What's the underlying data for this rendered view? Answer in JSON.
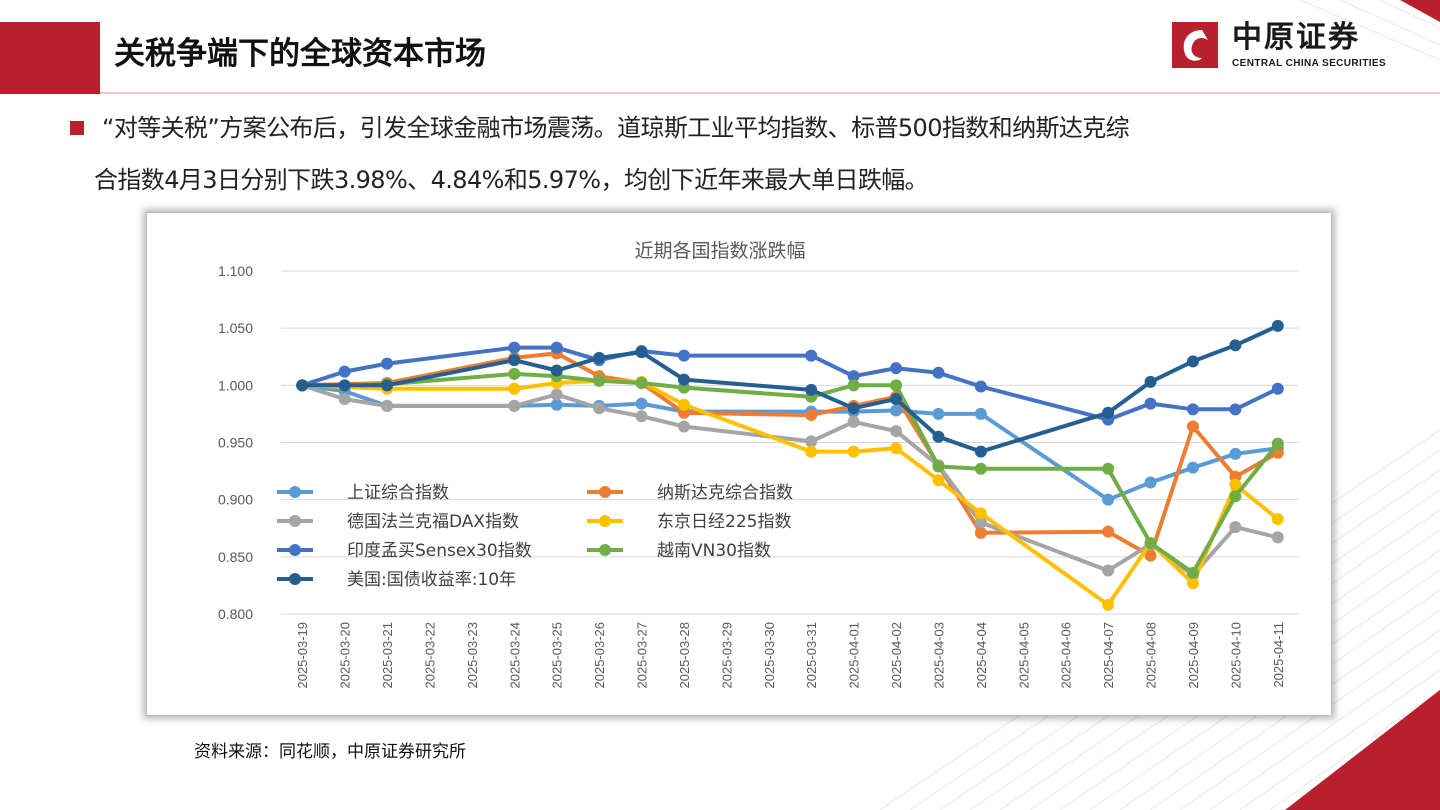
{
  "header": {
    "title": "关税争端下的全球资本市场",
    "logo_cn": "中原证券",
    "logo_en": "CENTRAL CHINA SECURITIES"
  },
  "intro": {
    "line1": "“对等关税”方案公布后，引发全球金融市场震荡。道琼斯工业平均指数、标普500指数和纳斯达克综",
    "line2": "合指数4月3日分别下跌3.98%、4.84%和5.97%，均创下近年来最大单日跌幅。"
  },
  "source": "资料来源：同花顺，中原证券研究所",
  "colors": {
    "brand_red": "#b8202e"
  },
  "chart_data": {
    "type": "line",
    "title": "近期各国指数涨跌幅",
    "ylim": [
      0.8,
      1.1
    ],
    "yticks": [
      1.1,
      1.05,
      1.0,
      0.95,
      0.9,
      0.85,
      0.8
    ],
    "ytick_labels": [
      "1.100",
      "1.050",
      "1.000",
      "0.950",
      "0.900",
      "0.850",
      "0.800"
    ],
    "grid": true,
    "legend_placement": "lower-left, inside plot",
    "categories": [
      "2025-03-19",
      "2025-03-20",
      "2025-03-21",
      "2025-03-22",
      "2025-03-23",
      "2025-03-24",
      "2025-03-25",
      "2025-03-26",
      "2025-03-27",
      "2025-03-28",
      "2025-03-29",
      "2025-03-30",
      "2025-03-31",
      "2025-04-01",
      "2025-04-02",
      "2025-04-03",
      "2025-04-04",
      "2025-04-05",
      "2025-04-06",
      "2025-04-07",
      "2025-04-08",
      "2025-04-09",
      "2025-04-10",
      "2025-04-11"
    ],
    "series": [
      {
        "name": "上证综合指数",
        "color": "#5b9bd5",
        "values": [
          1.0,
          0.995,
          0.982,
          null,
          null,
          0.982,
          0.983,
          0.982,
          0.984,
          0.977,
          null,
          null,
          0.977,
          0.977,
          0.978,
          0.975,
          0.975,
          null,
          null,
          0.9,
          0.915,
          0.928,
          0.94,
          0.945
        ]
      },
      {
        "name": "纳斯达克综合指数",
        "color": "#ed7d31",
        "values": [
          1.0,
          null,
          1.002,
          null,
          null,
          1.024,
          1.028,
          1.008,
          1.002,
          0.976,
          null,
          null,
          0.974,
          0.982,
          0.99,
          0.93,
          0.871,
          null,
          null,
          0.872,
          0.851,
          0.964,
          0.92,
          0.941
        ]
      },
      {
        "name": "德国法兰克福DAX指数",
        "color": "#a5a5a5",
        "values": [
          1.0,
          0.988,
          0.982,
          null,
          null,
          0.982,
          0.992,
          0.98,
          0.973,
          0.964,
          null,
          null,
          0.951,
          0.968,
          0.96,
          0.93,
          0.88,
          null,
          null,
          0.838,
          0.861,
          0.834,
          0.876,
          0.867
        ]
      },
      {
        "name": "东京日经225指数",
        "color": "#ffc000",
        "values": [
          1.0,
          null,
          0.997,
          null,
          null,
          0.997,
          1.002,
          1.004,
          1.003,
          0.983,
          null,
          null,
          0.942,
          0.942,
          0.945,
          0.917,
          0.888,
          null,
          null,
          0.808,
          0.862,
          0.827,
          0.913,
          0.883
        ]
      },
      {
        "name": "印度孟买Sensex30指数",
        "color": "#4472c4",
        "values": [
          1.0,
          1.012,
          1.019,
          null,
          null,
          1.033,
          1.033,
          1.022,
          1.03,
          1.026,
          null,
          null,
          1.026,
          1.008,
          1.015,
          1.011,
          0.999,
          null,
          null,
          0.97,
          0.984,
          0.979,
          0.979,
          0.997
        ]
      },
      {
        "name": "越南VN30指数",
        "color": "#70ad47",
        "values": [
          1.0,
          1.0,
          1.001,
          null,
          null,
          1.01,
          1.008,
          1.004,
          1.002,
          0.998,
          null,
          null,
          0.99,
          1.0,
          1.0,
          0.929,
          0.927,
          null,
          null,
          0.927,
          0.862,
          0.836,
          0.903,
          0.949
        ]
      },
      {
        "name": "美国:国债收益率:10年",
        "color": "#255e91",
        "values": [
          1.0,
          1.0,
          1.0,
          null,
          null,
          1.022,
          1.013,
          1.024,
          1.029,
          1.005,
          null,
          null,
          0.996,
          0.98,
          0.988,
          0.955,
          0.942,
          null,
          null,
          0.976,
          1.003,
          1.021,
          1.035,
          1.052
        ]
      }
    ]
  }
}
